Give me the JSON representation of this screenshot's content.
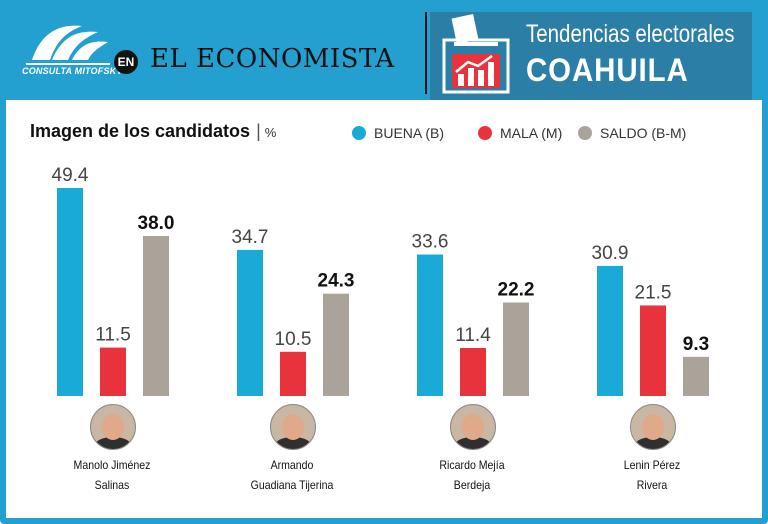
{
  "header": {
    "logo_text": "CONSULTA MITOFSKY",
    "en_badge": "EN",
    "newspaper": "EL ECONOMISTA",
    "title_line1": "Tendencias electorales",
    "title_line2": "COAHUILA"
  },
  "colors": {
    "frame": "#23a0cf",
    "buena": "#1aaad8",
    "mala": "#e8333c",
    "saldo": "#aaa39a"
  },
  "chart_data": {
    "type": "bar",
    "title": "Imagen de los candidatos",
    "unit": "%",
    "separator": "|",
    "categories": [
      "Manolo Jiménez Salinas",
      "Armando Guadiana Tijerina",
      "Ricardo Mejía Berdeja",
      "Lenin Pérez Rivera"
    ],
    "category_lines": [
      [
        "Manolo Jiménez",
        "Salinas"
      ],
      [
        "Armando",
        "Guadiana Tijerina"
      ],
      [
        "Ricardo Mejía",
        "Berdeja"
      ],
      [
        "Lenin Pérez",
        "Rivera"
      ]
    ],
    "series": [
      {
        "name": "BUENA (B)",
        "color": "#1aaad8",
        "values": [
          49.4,
          34.7,
          33.6,
          30.9
        ],
        "labels": [
          "49.4",
          "34.7",
          "33.6",
          "30.9"
        ],
        "bold": false
      },
      {
        "name": "MALA (M)",
        "color": "#e8333c",
        "values": [
          11.5,
          10.5,
          11.4,
          21.5
        ],
        "labels": [
          "11.5",
          "10.5",
          "11.4",
          "21.5"
        ],
        "bold": false
      },
      {
        "name": "SALDO (B-M)",
        "color": "#aaa39a",
        "values": [
          38.0,
          24.3,
          22.2,
          9.3
        ],
        "labels": [
          "38.0",
          "24.3",
          "22.2",
          "9.3"
        ],
        "bold": true
      }
    ],
    "ylim": [
      0,
      49.4
    ],
    "legend_position": "top",
    "grid": false
  }
}
